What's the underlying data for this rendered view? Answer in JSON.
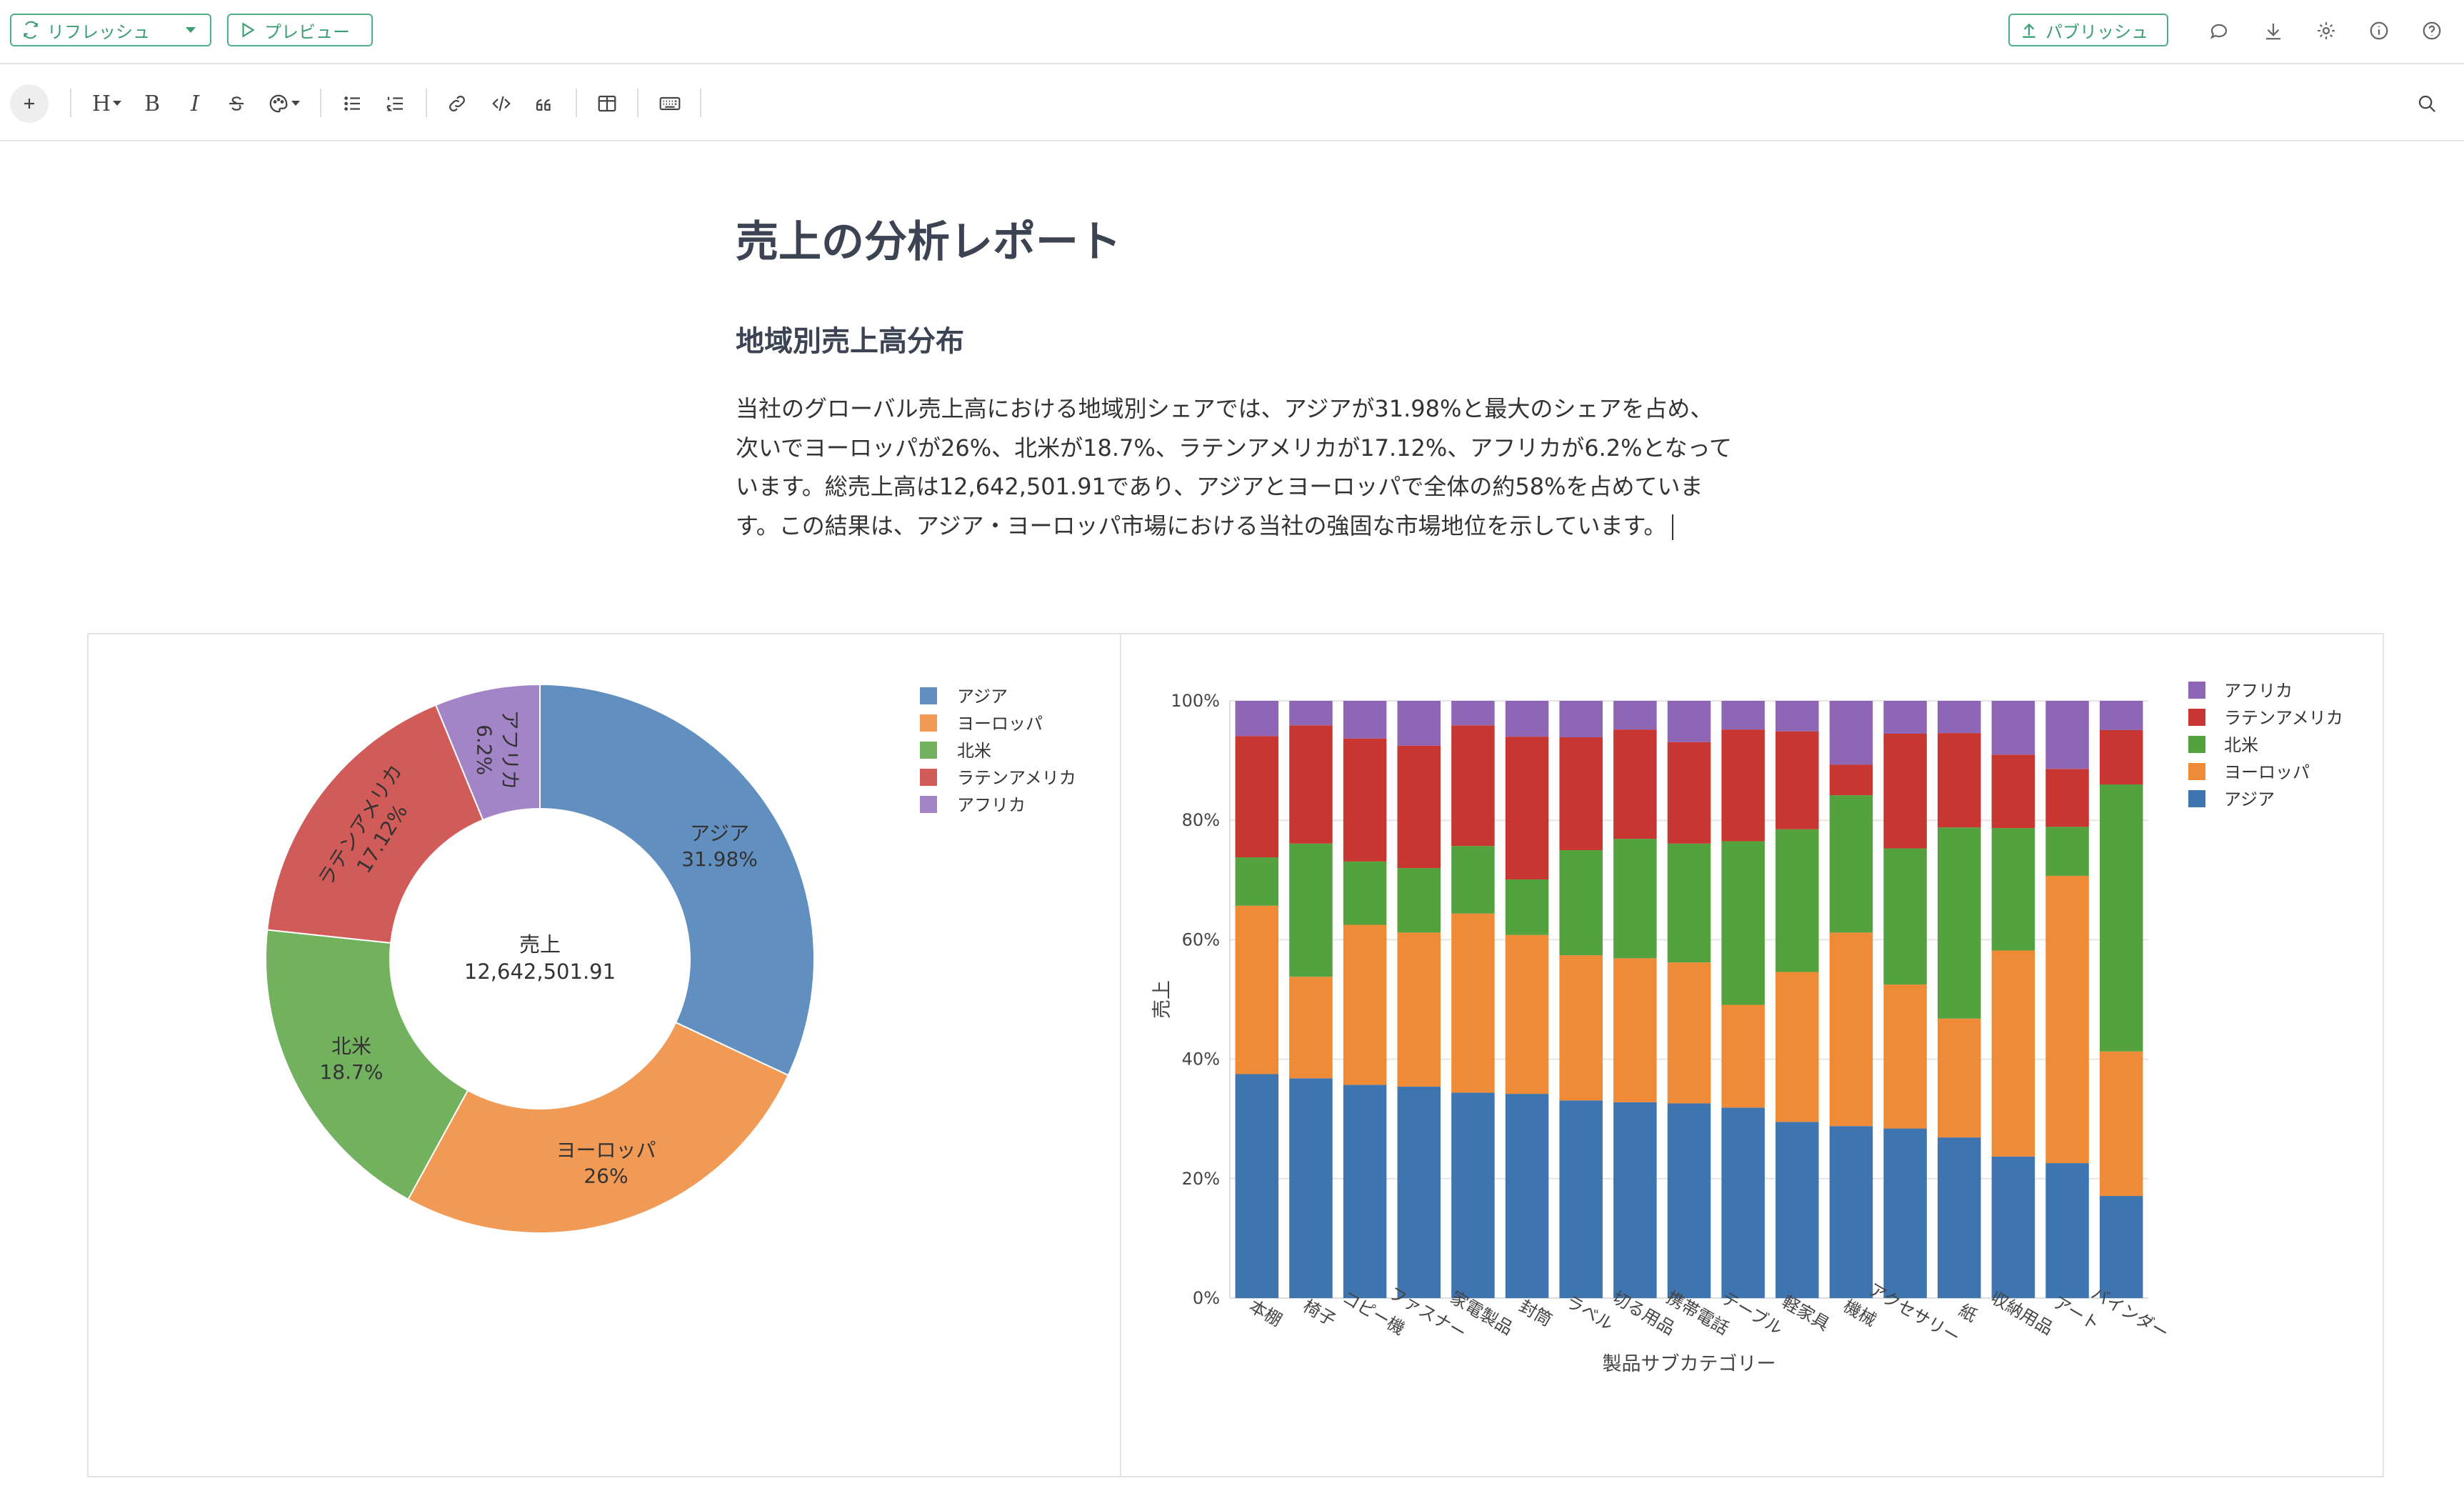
{
  "topbar": {
    "refresh_label": "リフレッシュ",
    "preview_label": "プレビュー",
    "publish_label": "パブリッシュ",
    "icons": [
      "comment-icon",
      "download-icon",
      "gear-icon",
      "info-icon",
      "help-icon"
    ]
  },
  "toolbar": {
    "items": [
      "add",
      "heading",
      "bold",
      "italic",
      "strikethrough",
      "color",
      "bullet-list",
      "numbered-list",
      "link",
      "code",
      "quote",
      "table",
      "keyboard",
      "search"
    ],
    "bold_label": "B",
    "italic_label": "I",
    "heading_label": "H"
  },
  "doc": {
    "title": "売上の分析レポート",
    "heading": "地域別売上高分布",
    "paragraph": "当社のグローバル売上高における地域別シェアでは、アジアが31.98%と最大のシェアを占め、次いでヨーロッパが26%、北米が18.7%、ラテンアメリカが17.12%、アフリカが6.2%となっています。総売上高は12,642,501.91であり、アジアとヨーロッパで全体の約58%を占めています。この結果は、アジア・ヨーロッパ市場における当社の強固な市場地位を示しています。"
  },
  "chart_data": [
    {
      "type": "pie",
      "hole": true,
      "center_label": "売上",
      "center_value": "12,642,501.91",
      "legend_position": "top-right",
      "slices": [
        {
          "name": "アジア",
          "value": 31.98,
          "label": "31.98%",
          "color": "#6190c0"
        },
        {
          "name": "ヨーロッパ",
          "value": 26,
          "label": "26%",
          "color": "#f19a56"
        },
        {
          "name": "北米",
          "value": 18.7,
          "label": "18.7%",
          "color": "#72b25e"
        },
        {
          "name": "ラテンアメリカ",
          "value": 17.12,
          "label": "17.12%",
          "color": "#d15b58"
        },
        {
          "name": "アフリカ",
          "value": 6.2,
          "label": "6.2%",
          "color": "#a384c7"
        }
      ]
    },
    {
      "type": "bar",
      "stacked": "percent",
      "xlabel": "製品サブカテゴリー",
      "ylabel": "売上",
      "ylim": [
        0,
        100
      ],
      "yticks": [
        "0%",
        "20%",
        "40%",
        "60%",
        "80%",
        "100%"
      ],
      "legend_position": "top-right",
      "legend_order": [
        "アフリカ",
        "ラテンアメリカ",
        "北米",
        "ヨーロッパ",
        "アジア"
      ],
      "categories": [
        "本棚",
        "椅子",
        "コピー機",
        "ファスナー",
        "家電製品",
        "封筒",
        "ラベル",
        "切る用品",
        "携帯電話",
        "テーブル",
        "軽家具",
        "機械",
        "アクセサリー",
        "紙",
        "収納用品",
        "アート",
        "バインダー"
      ],
      "series": [
        {
          "name": "アジア",
          "color": "#3e75b0",
          "values": [
            37.5,
            36.8,
            35.7,
            35.4,
            34.4,
            34.2,
            33.1,
            32.8,
            32.6,
            31.9,
            29.5,
            28.8,
            28.4,
            26.9,
            23.7,
            22.6,
            17.1
          ]
        },
        {
          "name": "ヨーロッパ",
          "color": "#ef8a36",
          "values": [
            28.2,
            17.0,
            26.8,
            25.8,
            30.0,
            26.6,
            24.3,
            24.1,
            23.6,
            17.2,
            25.1,
            32.4,
            24.1,
            19.9,
            34.5,
            48.1,
            24.2
          ]
        },
        {
          "name": "北米",
          "color": "#53a23e",
          "values": [
            8.1,
            22.3,
            10.6,
            10.8,
            11.3,
            9.3,
            17.6,
            20.0,
            19.9,
            27.4,
            23.9,
            23.0,
            22.8,
            32.0,
            20.5,
            8.2,
            44.7
          ]
        },
        {
          "name": "ラテンアメリカ",
          "color": "#c73630",
          "values": [
            20.3,
            19.8,
            20.6,
            20.5,
            20.2,
            23.9,
            18.9,
            18.3,
            17.0,
            18.7,
            16.4,
            5.1,
            19.2,
            15.8,
            12.3,
            9.7,
            9.1
          ]
        },
        {
          "name": "アフリカ",
          "color": "#8f65b5",
          "values": [
            5.9,
            4.1,
            6.3,
            7.5,
            4.1,
            6.0,
            6.1,
            4.8,
            6.9,
            4.8,
            5.1,
            10.7,
            5.5,
            5.4,
            9.0,
            11.4,
            4.9
          ]
        }
      ]
    }
  ]
}
